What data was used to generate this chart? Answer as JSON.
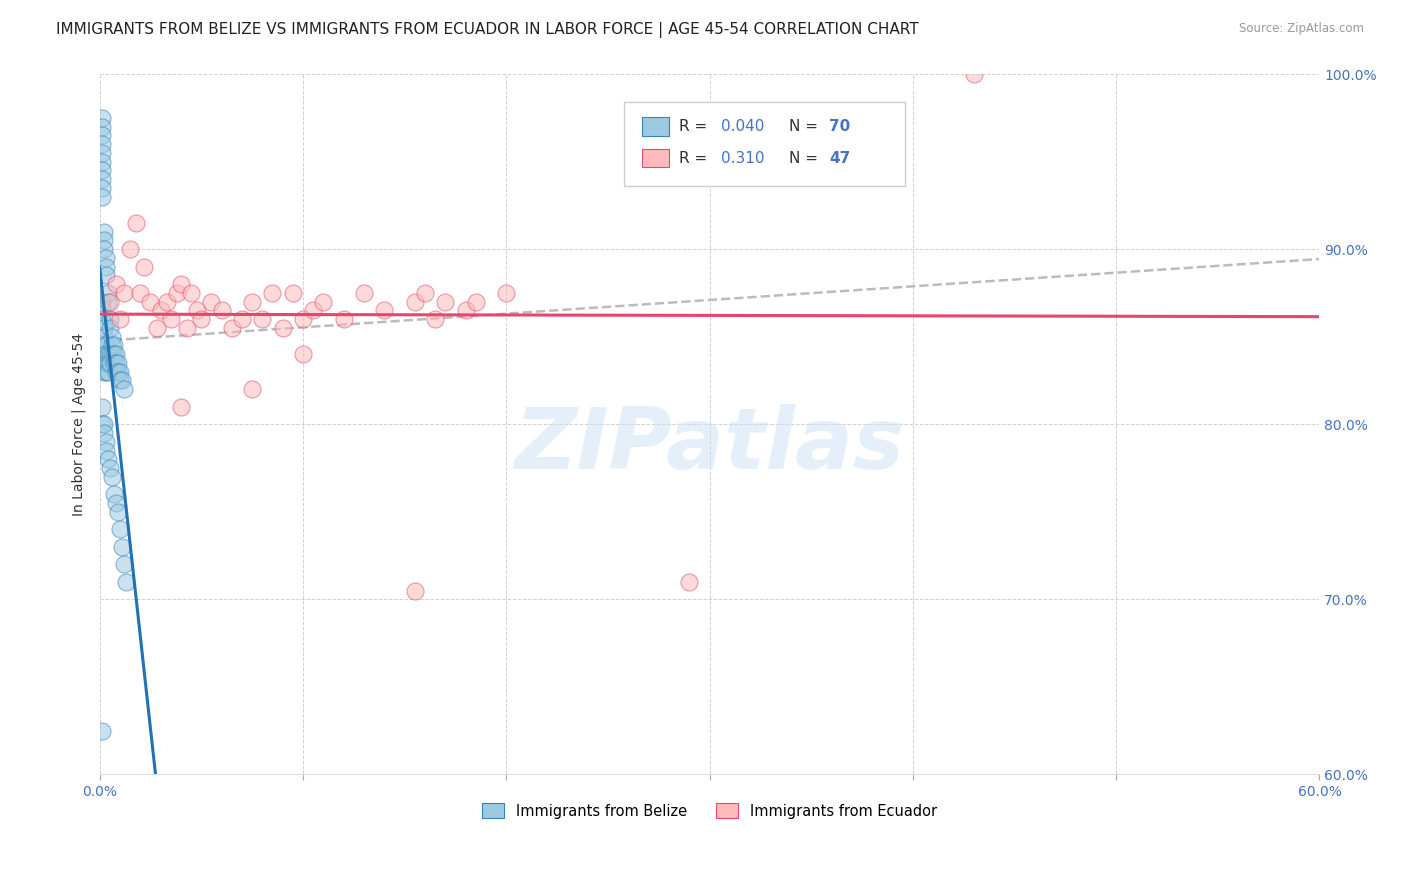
{
  "title": "IMMIGRANTS FROM BELIZE VS IMMIGRANTS FROM ECUADOR IN LABOR FORCE | AGE 45-54 CORRELATION CHART",
  "source": "Source: ZipAtlas.com",
  "ylabel": "In Labor Force | Age 45-54",
  "xlim": [
    0.0,
    0.6
  ],
  "ylim": [
    0.6,
    1.0
  ],
  "xticks": [
    0.0,
    0.1,
    0.2,
    0.3,
    0.4,
    0.5,
    0.6
  ],
  "xticklabels_show": [
    "0.0%",
    "60.0%"
  ],
  "xticklabels_pos": [
    0.0,
    0.6
  ],
  "yticks": [
    0.6,
    0.7,
    0.8,
    0.9,
    1.0
  ],
  "yticklabels": [
    "60.0%",
    "70.0%",
    "80.0%",
    "90.0%",
    "100.0%"
  ],
  "belize_R": 0.04,
  "belize_N": 70,
  "ecuador_R": 0.31,
  "ecuador_N": 47,
  "belize_face_color": "#9ecae1",
  "belize_edge_color": "#3182bd",
  "ecuador_face_color": "#fcbaba",
  "ecuador_edge_color": "#e84a6f",
  "belize_line_color": "#2171b5",
  "ecuador_line_color": "#e8456a",
  "trend_line_color": "#bbbbbb",
  "legend_label_belize": "Immigrants from Belize",
  "legend_label_ecuador": "Immigrants from Ecuador",
  "watermark_text": "ZIPatlas",
  "R_N_color": "#4472c4",
  "background_color": "#ffffff",
  "grid_color": "#cccccc",
  "title_fontsize": 11,
  "axis_label_fontsize": 10,
  "tick_fontsize": 10,
  "tick_color": "#4472c4",
  "belize_x": [
    0.001,
    0.001,
    0.001,
    0.001,
    0.001,
    0.001,
    0.001,
    0.001,
    0.001,
    0.001,
    0.001,
    0.001,
    0.001,
    0.002,
    0.002,
    0.002,
    0.002,
    0.002,
    0.002,
    0.002,
    0.002,
    0.002,
    0.003,
    0.003,
    0.003,
    0.003,
    0.003,
    0.003,
    0.003,
    0.004,
    0.004,
    0.004,
    0.004,
    0.004,
    0.005,
    0.005,
    0.005,
    0.005,
    0.006,
    0.006,
    0.006,
    0.007,
    0.007,
    0.007,
    0.008,
    0.008,
    0.008,
    0.009,
    0.009,
    0.01,
    0.01,
    0.011,
    0.012,
    0.001,
    0.001,
    0.002,
    0.002,
    0.003,
    0.003,
    0.004,
    0.005,
    0.006,
    0.007,
    0.008,
    0.009,
    0.01,
    0.011,
    0.012,
    0.013,
    0.001
  ],
  "belize_y": [
    0.975,
    0.97,
    0.965,
    0.96,
    0.955,
    0.95,
    0.945,
    0.94,
    0.935,
    0.93,
    0.87,
    0.865,
    0.86,
    0.91,
    0.905,
    0.9,
    0.855,
    0.85,
    0.845,
    0.84,
    0.835,
    0.83,
    0.895,
    0.89,
    0.885,
    0.845,
    0.84,
    0.835,
    0.83,
    0.875,
    0.87,
    0.84,
    0.835,
    0.83,
    0.86,
    0.855,
    0.84,
    0.835,
    0.85,
    0.845,
    0.84,
    0.845,
    0.84,
    0.835,
    0.84,
    0.835,
    0.83,
    0.835,
    0.83,
    0.83,
    0.825,
    0.825,
    0.82,
    0.81,
    0.8,
    0.8,
    0.795,
    0.79,
    0.785,
    0.78,
    0.775,
    0.77,
    0.76,
    0.755,
    0.75,
    0.74,
    0.73,
    0.72,
    0.71,
    0.625
  ],
  "ecuador_x": [
    0.005,
    0.008,
    0.01,
    0.012,
    0.015,
    0.018,
    0.02,
    0.022,
    0.025,
    0.028,
    0.03,
    0.033,
    0.035,
    0.038,
    0.04,
    0.043,
    0.045,
    0.048,
    0.05,
    0.055,
    0.06,
    0.065,
    0.07,
    0.075,
    0.08,
    0.085,
    0.09,
    0.095,
    0.1,
    0.105,
    0.11,
    0.12,
    0.13,
    0.14,
    0.155,
    0.16,
    0.165,
    0.17,
    0.18,
    0.185,
    0.2,
    0.155,
    0.29,
    0.43,
    0.04,
    0.075,
    0.1
  ],
  "ecuador_y": [
    0.87,
    0.88,
    0.86,
    0.875,
    0.9,
    0.915,
    0.875,
    0.89,
    0.87,
    0.855,
    0.865,
    0.87,
    0.86,
    0.875,
    0.88,
    0.855,
    0.875,
    0.865,
    0.86,
    0.87,
    0.865,
    0.855,
    0.86,
    0.87,
    0.86,
    0.875,
    0.855,
    0.875,
    0.86,
    0.865,
    0.87,
    0.86,
    0.875,
    0.865,
    0.87,
    0.875,
    0.86,
    0.87,
    0.865,
    0.87,
    0.875,
    0.705,
    0.71,
    1.0,
    0.81,
    0.82,
    0.84
  ]
}
